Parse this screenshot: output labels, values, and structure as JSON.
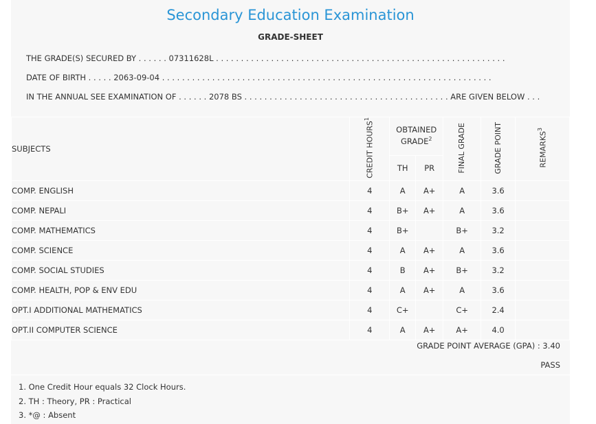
{
  "header": {
    "title": "Secondary Education Examination",
    "subtitle": "GRADE-SHEET"
  },
  "info": {
    "line1": "THE GRADE(S) SECURED BY . . . . . . 07311628L . . . . . . . . . . . . . . . . . . . . . . . . . . . . . . . . . . . . . . . . . . . . . . . . . . . . . . . . . .",
    "line2": "DATE OF BIRTH . . . . . 2063-09-04 . . . . . . . . . . . . . . . . . . . . . . . . . . . . . . . . . . . . . . . . . . . . . . . . . . . . . . . . . . . . . . . . . .",
    "line3": "IN THE ANNUAL SEE EXAMINATION OF . . . . . . 2078 BS . . . . . . . . . . . . . . . . . . . . . . . . . . . . . . . . . . . . . . . . . ARE GIVEN BELOW . . ."
  },
  "table": {
    "col_subjects": "SUBJECTS",
    "col_credit": "CREDIT HOURS",
    "col_credit_sup": "1",
    "col_obtained_line1": "OBTAINED",
    "col_obtained_line2": "GRADE",
    "col_obtained_sup": "2",
    "col_th": "TH",
    "col_pr": "PR",
    "col_final": "FINAL GRADE",
    "col_point": "GRADE POINT",
    "col_remarks": "REMARKS",
    "col_remarks_sup": "3",
    "rows": [
      {
        "subject": "COMP. ENGLISH",
        "credit": "4",
        "th": "A",
        "pr": "A+",
        "final": "A",
        "point": "3.6",
        "remarks": ""
      },
      {
        "subject": "COMP. NEPALI",
        "credit": "4",
        "th": "B+",
        "pr": "A+",
        "final": "A",
        "point": "3.6",
        "remarks": ""
      },
      {
        "subject": "COMP. MATHEMATICS",
        "credit": "4",
        "th": "B+",
        "pr": "",
        "final": "B+",
        "point": "3.2",
        "remarks": ""
      },
      {
        "subject": "COMP. SCIENCE",
        "credit": "4",
        "th": "A",
        "pr": "A+",
        "final": "A",
        "point": "3.6",
        "remarks": ""
      },
      {
        "subject": "COMP. SOCIAL STUDIES",
        "credit": "4",
        "th": "B",
        "pr": "A+",
        "final": "B+",
        "point": "3.2",
        "remarks": ""
      },
      {
        "subject": "COMP. HEALTH, POP & ENV EDU",
        "credit": "4",
        "th": "A",
        "pr": "A+",
        "final": "A",
        "point": "3.6",
        "remarks": ""
      },
      {
        "subject": "OPT.I ADDITIONAL MATHEMATICS",
        "credit": "4",
        "th": "C+",
        "pr": "",
        "final": "C+",
        "point": "2.4",
        "remarks": ""
      },
      {
        "subject": "OPT.II COMPUTER SCIENCE",
        "credit": "4",
        "th": "A",
        "pr": "A+",
        "final": "A+",
        "point": "4.0",
        "remarks": ""
      }
    ]
  },
  "summary": {
    "gpa": "GRADE POINT AVERAGE (GPA) : 3.40",
    "result": "PASS"
  },
  "notes": [
    "1. One Credit Hour equals 32 Clock Hours.",
    "2. TH : Theory, PR : Practical",
    "3. *@ : Absent"
  ],
  "colors": {
    "title": "#2a95d6",
    "card_background": "#f7f7f7",
    "text": "#333333"
  }
}
